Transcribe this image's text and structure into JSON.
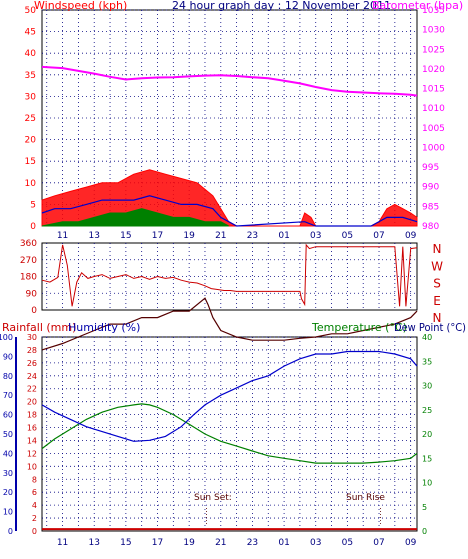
{
  "page_title": "24 hour graph day : 12 November 2011",
  "colors": {
    "wind": "#ff0000",
    "gust": "#0000cc",
    "green": "#008000",
    "baro": "#ff00ff",
    "dir": "#cc0000",
    "temp": "#0000cc",
    "dew": "#008000",
    "hum": "#550000",
    "rain": "#cc0000",
    "grid": "#000080",
    "axis_left": "#0000aa"
  },
  "time_ticks": [
    "11",
    "13",
    "15",
    "17",
    "19",
    "21",
    "23",
    "01",
    "03",
    "05",
    "07",
    "09"
  ],
  "chart_data": [
    {
      "type": "line",
      "title": "24 hour graph day : 12 November 2011",
      "ylabel_left": "Windspeed (kph)",
      "ylabel_right": "Barometer (hpa)",
      "y_left_ticks": [
        "0",
        "5",
        "10",
        "15",
        "20",
        "25",
        "30",
        "35",
        "40",
        "45",
        "50"
      ],
      "y_right_ticks": [
        "980",
        "985",
        "990",
        "995",
        "1000",
        "1005",
        "1010",
        "1015",
        "1020",
        "1025",
        "1030",
        "1035"
      ],
      "ylim_left": [
        0,
        50
      ],
      "ylim_right": [
        980,
        1035
      ],
      "series": [
        {
          "name": "Barometer (hpa)",
          "axis": "right",
          "x": [
            9.7,
            11,
            13,
            14,
            15,
            16,
            17,
            18,
            19,
            20,
            21,
            22,
            23,
            24,
            25,
            26,
            27,
            28,
            29,
            30,
            31,
            32,
            33,
            33.4
          ],
          "y": [
            1020.5,
            1020.2,
            1018.8,
            1018.0,
            1017.3,
            1017.6,
            1017.8,
            1017.9,
            1018.1,
            1018.3,
            1018.4,
            1018.2,
            1017.9,
            1017.6,
            1017.0,
            1016.3,
            1015.4,
            1014.6,
            1014.2,
            1014.0,
            1013.8,
            1013.7,
            1013.4,
            1013.2
          ]
        },
        {
          "name": "Wind speed",
          "axis": "left",
          "x": [
            9.7,
            10.5,
            11.5,
            12.5,
            13.5,
            14.5,
            15.5,
            16.5,
            17.5,
            18.5,
            19.5,
            20.5,
            21.0,
            21.5,
            22,
            23,
            24,
            25,
            26,
            26.3,
            26.7,
            27,
            28,
            29,
            30,
            30.5,
            31,
            31.5,
            32,
            32.5,
            33,
            33.4
          ],
          "y": [
            6,
            7,
            8,
            9,
            10,
            10,
            12,
            13,
            12,
            11,
            10,
            7,
            4,
            1,
            0,
            0,
            0,
            0,
            0,
            3,
            2,
            0,
            0,
            0,
            0,
            0,
            1,
            4,
            5,
            4,
            3,
            2
          ]
        },
        {
          "name": "Wind gust",
          "axis": "left",
          "x": [
            9.7,
            10.5,
            11.5,
            12.5,
            13.5,
            14.5,
            15.5,
            16.5,
            17.5,
            18.5,
            19.5,
            20.5,
            21.0,
            21.5,
            22,
            26.3,
            27,
            30.5,
            31.5,
            32.5,
            33.4
          ],
          "y": [
            3,
            4,
            4,
            5,
            6,
            6,
            6,
            7,
            6,
            5,
            5,
            4,
            2,
            1,
            0,
            1,
            0,
            0,
            2,
            2,
            1
          ]
        },
        {
          "name": "Wind average",
          "axis": "left",
          "x": [
            9.7,
            11,
            12,
            13,
            14,
            15,
            16,
            17,
            18,
            19,
            20,
            21,
            21.5
          ],
          "y": [
            0,
            1,
            1,
            2,
            3,
            3,
            4,
            3,
            2,
            2,
            1,
            1,
            0
          ]
        }
      ]
    },
    {
      "type": "line",
      "y_left_ticks": [
        "0",
        "90",
        "180",
        "270",
        "360"
      ],
      "y_right_ticks": [
        "N",
        "W",
        "S",
        "E",
        "N"
      ],
      "ylim": [
        0,
        360
      ],
      "series": [
        {
          "name": "Wind direction",
          "x": [
            9.7,
            10.2,
            10.7,
            11.0,
            11.3,
            11.6,
            11.9,
            12.2,
            12.6,
            13,
            13.5,
            14,
            14.5,
            15,
            15.5,
            16,
            16.5,
            17,
            17.5,
            18,
            18.5,
            19,
            19.5,
            20,
            20.4,
            20.8,
            21.2,
            21.6,
            22,
            24,
            25,
            26,
            26.1,
            26.3,
            26.4,
            26.6,
            27,
            28,
            30,
            32,
            32.3,
            32.5,
            32.7,
            33,
            33.4
          ],
          "y": [
            160,
            150,
            175,
            350,
            240,
            20,
            150,
            200,
            170,
            180,
            190,
            170,
            180,
            190,
            170,
            180,
            165,
            180,
            170,
            175,
            160,
            150,
            145,
            130,
            115,
            110,
            105,
            105,
            100,
            100,
            100,
            100,
            60,
            30,
            350,
            330,
            340,
            340,
            340,
            340,
            20,
            340,
            20,
            330,
            335
          ]
        }
      ]
    },
    {
      "type": "line",
      "ylabel_left_1": "Rainfall (mm)",
      "ylabel_left_2": "Humidity (%)",
      "ylabel_right_1": "Temperature (°C)",
      "ylabel_right_2": "Dew Point (°C)",
      "y_hum_ticks": [
        "0",
        "10",
        "20",
        "30",
        "40",
        "50",
        "60",
        "70",
        "80",
        "90",
        "100"
      ],
      "y_rain_ticks": [
        "0",
        "2",
        "4",
        "6",
        "8",
        "10",
        "12",
        "14",
        "16",
        "18",
        "20",
        "22",
        "24",
        "26",
        "28",
        "30"
      ],
      "y_temp_ticks": [
        "0",
        "5",
        "10",
        "15",
        "20",
        "25",
        "30",
        "35",
        "40"
      ],
      "ylim_humidity": [
        0,
        100
      ],
      "ylim_rain": [
        0,
        30
      ],
      "ylim_temp": [
        0,
        40
      ],
      "annotations": [
        {
          "text": "Sun Set:",
          "x": 20.1
        },
        {
          "text": "Sun Rise",
          "x": 31.1
        }
      ],
      "series": [
        {
          "name": "Temperature",
          "axis": "temp",
          "x": [
            9.7,
            10.5,
            11.5,
            12.5,
            13.5,
            14.5,
            15.5,
            16.5,
            17.5,
            18.5,
            19.3,
            20,
            20.5,
            21,
            22,
            23,
            24,
            25,
            26,
            27,
            28,
            29,
            30,
            31,
            32,
            33,
            33.4
          ],
          "y": [
            26,
            24.5,
            23,
            21.5,
            20.5,
            19.5,
            18.5,
            18.7,
            19.5,
            21.5,
            24,
            26,
            27,
            28,
            29.5,
            31,
            32,
            34,
            35.5,
            36.5,
            36.5,
            37,
            37,
            37,
            36.5,
            35.5,
            34
          ]
        },
        {
          "name": "Dew Point",
          "axis": "temp",
          "x": [
            9.7,
            10.5,
            11.5,
            12.5,
            13.5,
            14.5,
            15.5,
            16,
            16.5,
            17,
            18,
            19,
            20,
            21,
            22,
            23,
            24,
            25,
            26,
            27,
            28,
            29,
            30,
            31,
            32,
            33,
            33.4
          ],
          "y": [
            17,
            19,
            21,
            23,
            24.5,
            25.5,
            26,
            26.2,
            26,
            25.5,
            24,
            22,
            20,
            18.5,
            17.5,
            16.5,
            15.5,
            15,
            14.5,
            14,
            14,
            14,
            14,
            14.2,
            14.5,
            15,
            16
          ]
        },
        {
          "name": "Humidity",
          "axis": "hum",
          "x": [
            9.7,
            11,
            12,
            13,
            14,
            15,
            16,
            17,
            18,
            19,
            20,
            20.2,
            20.5,
            21,
            22,
            23,
            24,
            25,
            26,
            27,
            28,
            29,
            30,
            31,
            32,
            33,
            33.4
          ],
          "y": [
            28,
            29,
            30,
            31,
            32,
            32,
            33,
            33,
            34,
            34,
            36,
            35,
            33,
            31,
            30,
            29.5,
            29.5,
            29.5,
            29.8,
            30,
            30.5,
            30.5,
            31,
            31.5,
            32,
            33,
            34
          ]
        },
        {
          "name": "Rainfall",
          "axis": "rain",
          "x": [
            9.7,
            33.4
          ],
          "y": [
            0.3,
            0.3
          ]
        }
      ]
    }
  ]
}
